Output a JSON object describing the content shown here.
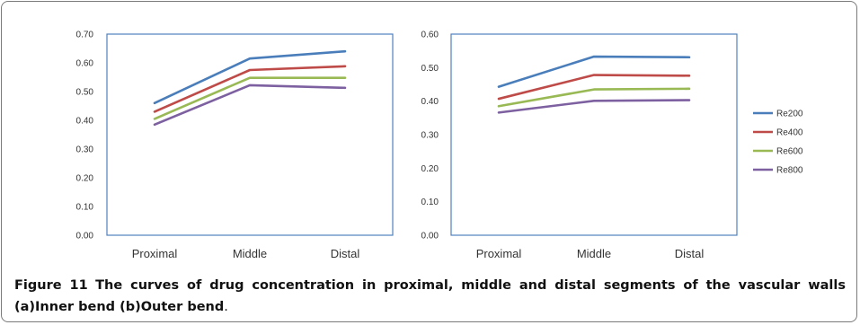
{
  "figure": {
    "label": "Figure 11",
    "title_bold": "The curves of drug concentration in proximal, middle and distal segments of the vascular walls (a)Inner bend (b)Outer bend",
    "title_rest": "."
  },
  "chart_data": [
    {
      "type": "line",
      "categories": [
        "Proximal",
        "Middle",
        "Distal"
      ],
      "ylim": [
        0,
        0.7
      ],
      "yticks": [
        "0.00",
        "0.10",
        "0.20",
        "0.30",
        "0.40",
        "0.50",
        "0.60",
        "0.70"
      ],
      "series": [
        {
          "name": "Re200",
          "color": "#4a7ebb",
          "values": [
            0.46,
            0.615,
            0.64
          ]
        },
        {
          "name": "Re400",
          "color": "#be4b48",
          "values": [
            0.43,
            0.575,
            0.588
          ]
        },
        {
          "name": "Re600",
          "color": "#98b954",
          "values": [
            0.405,
            0.548,
            0.548
          ]
        },
        {
          "name": "Re800",
          "color": "#7d60a0",
          "values": [
            0.385,
            0.522,
            0.513
          ]
        }
      ]
    },
    {
      "type": "line",
      "categories": [
        "Proximal",
        "Middle",
        "Distal"
      ],
      "ylim": [
        0,
        0.6
      ],
      "yticks": [
        "0.00",
        "0.10",
        "0.20",
        "0.30",
        "0.40",
        "0.50",
        "0.60"
      ],
      "series": [
        {
          "name": "Re200",
          "color": "#4a7ebb",
          "values": [
            0.443,
            0.533,
            0.531
          ]
        },
        {
          "name": "Re400",
          "color": "#be4b48",
          "values": [
            0.407,
            0.478,
            0.476
          ]
        },
        {
          "name": "Re600",
          "color": "#98b954",
          "values": [
            0.385,
            0.435,
            0.437
          ]
        },
        {
          "name": "Re800",
          "color": "#7d60a0",
          "values": [
            0.366,
            0.401,
            0.403
          ]
        }
      ],
      "legend": "right"
    }
  ]
}
